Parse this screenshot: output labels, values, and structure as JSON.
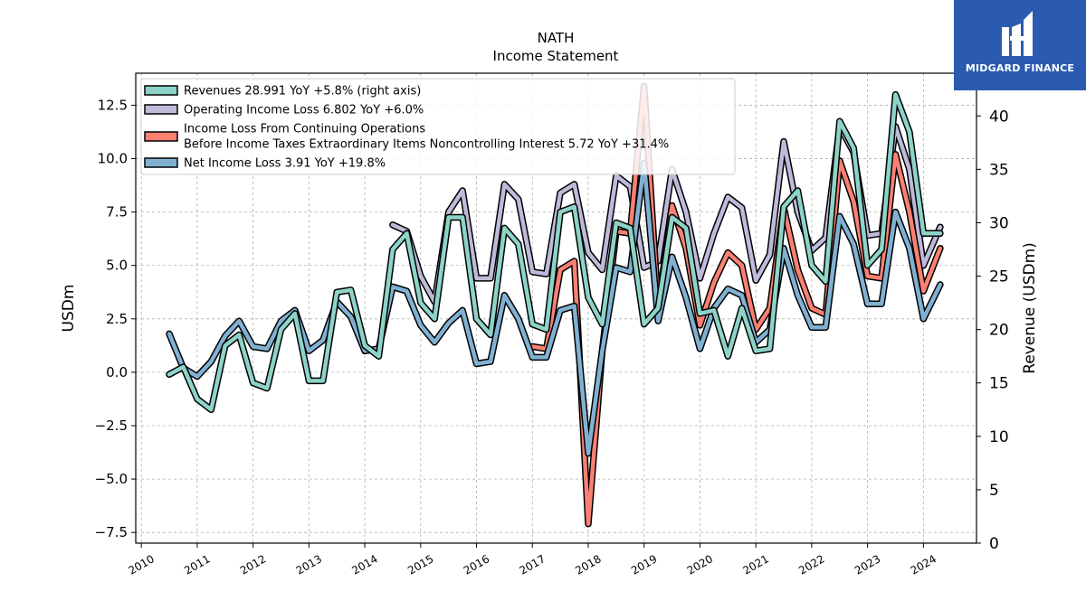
{
  "chart_data": {
    "type": "line",
    "title": "NATH",
    "subtitle": "Income Statement",
    "ylabel": "USDm",
    "ylabel_right": "Revenue (USDm)",
    "ylim": [
      -8.0,
      14.0
    ],
    "ylim_right": [
      0,
      44
    ],
    "yticks": [
      -7.5,
      -5.0,
      -2.5,
      0.0,
      2.5,
      5.0,
      7.5,
      10.0,
      12.5
    ],
    "yticks_right": [
      0,
      5,
      10,
      15,
      20,
      25,
      30,
      35,
      40
    ],
    "xticks": [
      2010,
      2011,
      2012,
      2013,
      2014,
      2015,
      2016,
      2017,
      2018,
      2019,
      2020,
      2021,
      2022,
      2023,
      2024
    ],
    "xlim": [
      2009.9,
      2024.95
    ],
    "grid": true,
    "legend_position": "top-left",
    "series": [
      {
        "name": "Revenues  28.991 YoY +5.8% (right axis)",
        "axis": "right",
        "color": "#8dd3c7",
        "x": [
          2010.5,
          2010.75,
          2011.0,
          2011.25,
          2011.5,
          2011.75,
          2012.0,
          2012.25,
          2012.5,
          2012.75,
          2013.0,
          2013.25,
          2013.5,
          2013.75,
          2014.0,
          2014.25,
          2014.5,
          2014.75,
          2015.0,
          2015.25,
          2015.5,
          2015.75,
          2016.0,
          2016.25,
          2016.5,
          2016.75,
          2017.0,
          2017.25,
          2017.5,
          2017.75,
          2018.0,
          2018.25,
          2018.5,
          2018.75,
          2019.0,
          2019.25,
          2019.5,
          2019.75,
          2020.0,
          2020.25,
          2020.5,
          2020.75,
          2021.0,
          2021.25,
          2021.5,
          2021.75,
          2022.0,
          2022.25,
          2022.5,
          2022.75,
          2023.0,
          2023.25,
          2023.5,
          2023.75,
          2024.0,
          2024.3
        ],
        "values": [
          15.8,
          16.5,
          13.5,
          12.5,
          18.5,
          19.5,
          15.0,
          14.5,
          20.0,
          21.5,
          15.2,
          15.2,
          23.5,
          23.7,
          18.5,
          17.5,
          27.5,
          29.0,
          22.5,
          21.0,
          30.5,
          30.5,
          21.0,
          19.5,
          29.5,
          28.0,
          20.5,
          20.0,
          31.0,
          31.5,
          23.0,
          20.5,
          30.0,
          29.5,
          20.5,
          22.0,
          30.5,
          29.5,
          21.5,
          21.8,
          17.5,
          22.0,
          18.0,
          18.2,
          31.5,
          33.0,
          26.0,
          24.5,
          39.5,
          37.0,
          26.0,
          27.5,
          42.0,
          38.5,
          29.0,
          29.0
        ]
      },
      {
        "name": "Operating Income Loss  6.802 YoY +6.0%",
        "axis": "left",
        "color": "#bebada",
        "x": [
          2014.5,
          2014.75,
          2015.0,
          2015.25,
          2015.5,
          2015.75,
          2016.0,
          2016.25,
          2016.5,
          2016.75,
          2017.0,
          2017.25,
          2017.5,
          2017.75,
          2018.0,
          2018.25,
          2018.5,
          2018.75,
          2019.0,
          2019.25,
          2019.5,
          2019.75,
          2020.0,
          2020.25,
          2020.5,
          2020.75,
          2021.0,
          2021.25,
          2021.5,
          2021.75,
          2022.0,
          2022.25,
          2022.5,
          2022.75,
          2023.0,
          2023.25,
          2023.5,
          2023.75,
          2024.0,
          2024.3
        ],
        "values": [
          6.9,
          6.6,
          4.5,
          3.3,
          7.5,
          8.5,
          4.4,
          4.4,
          8.8,
          8.1,
          4.7,
          4.6,
          8.4,
          8.8,
          5.6,
          4.8,
          9.2,
          8.7,
          4.9,
          5.2,
          9.5,
          7.5,
          4.4,
          6.5,
          8.2,
          7.7,
          4.3,
          5.5,
          10.8,
          7.5,
          5.7,
          6.3,
          11.5,
          10.3,
          6.4,
          6.5,
          11.5,
          9.5,
          5.0,
          6.8
        ]
      },
      {
        "name": "Income Loss From Continuing Operations Before Income Taxes Extraordinary Items Noncontrolling Interest  5.72 YoY +31.4%",
        "axis": "left",
        "color": "#fb8072",
        "x": [
          2017.0,
          2017.25,
          2017.5,
          2017.75,
          2018.0,
          2018.25,
          2018.5,
          2018.75,
          2019.0,
          2019.25,
          2019.5,
          2019.75,
          2020.0,
          2020.25,
          2020.5,
          2020.75,
          2021.0,
          2021.25,
          2021.5,
          2021.75,
          2022.0,
          2022.25,
          2022.5,
          2022.75,
          2023.0,
          2023.25,
          2023.5,
          2023.75,
          2024.0,
          2024.3
        ],
        "values": [
          1.2,
          1.1,
          4.8,
          5.2,
          -7.1,
          1.0,
          6.6,
          6.5,
          13.4,
          3.0,
          7.8,
          5.8,
          2.2,
          4.2,
          5.6,
          5.0,
          2.0,
          3.0,
          7.7,
          4.8,
          3.0,
          2.7,
          9.9,
          8.0,
          4.5,
          4.4,
          10.2,
          7.5,
          3.8,
          5.8
        ]
      },
      {
        "name": "Net Income Loss  3.91 YoY +19.8%",
        "axis": "left",
        "color": "#80b1d3",
        "x": [
          2010.5,
          2010.75,
          2011.0,
          2011.25,
          2011.5,
          2011.75,
          2012.0,
          2012.25,
          2012.5,
          2012.75,
          2013.0,
          2013.25,
          2013.5,
          2013.75,
          2014.0,
          2014.25,
          2014.5,
          2014.75,
          2015.0,
          2015.25,
          2015.5,
          2015.75,
          2016.0,
          2016.25,
          2016.5,
          2016.75,
          2017.0,
          2017.25,
          2017.5,
          2017.75,
          2018.0,
          2018.25,
          2018.5,
          2018.75,
          2019.0,
          2019.25,
          2019.5,
          2019.75,
          2020.0,
          2020.25,
          2020.5,
          2020.75,
          2021.0,
          2021.25,
          2021.5,
          2021.75,
          2022.0,
          2022.25,
          2022.5,
          2022.75,
          2023.0,
          2023.25,
          2023.5,
          2023.75,
          2024.0,
          2024.3
        ],
        "values": [
          1.8,
          0.2,
          -0.2,
          0.5,
          1.7,
          2.4,
          1.2,
          1.1,
          2.4,
          2.9,
          1.0,
          1.5,
          3.3,
          2.6,
          1.0,
          1.1,
          4.0,
          3.8,
          2.2,
          1.4,
          2.3,
          2.9,
          0.4,
          0.5,
          3.6,
          2.5,
          0.7,
          0.7,
          2.9,
          3.1,
          -3.8,
          1.0,
          4.9,
          4.7,
          9.8,
          2.4,
          5.4,
          3.5,
          1.1,
          3.0,
          3.9,
          3.6,
          1.4,
          2.0,
          5.8,
          3.6,
          2.1,
          2.1,
          7.3,
          6.0,
          3.2,
          3.2,
          7.5,
          5.8,
          2.5,
          4.1
        ]
      }
    ]
  },
  "logo": {
    "text": "MIDGARD FINANCE",
    "color": "#2b5bb0"
  }
}
